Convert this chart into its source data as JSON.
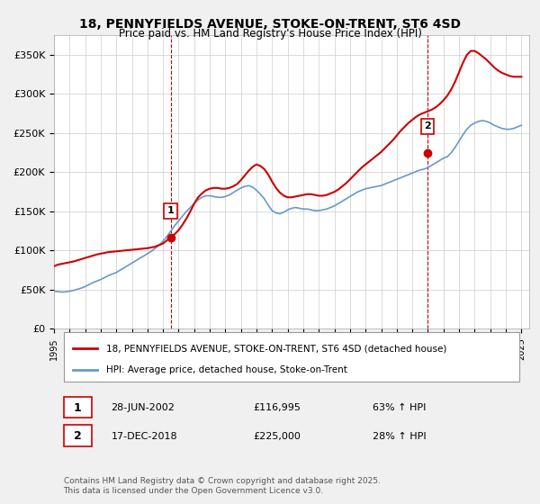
{
  "title": "18, PENNYFIELDS AVENUE, STOKE-ON-TRENT, ST6 4SD",
  "subtitle": "Price paid vs. HM Land Registry's House Price Index (HPI)",
  "legend_label1": "18, PENNYFIELDS AVENUE, STOKE-ON-TRENT, ST6 4SD (detached house)",
  "legend_label2": "HPI: Average price, detached house, Stoke-on-Trent",
  "footer": "Contains HM Land Registry data © Crown copyright and database right 2025.\nThis data is licensed under the Open Government Licence v3.0.",
  "sale1_label": "1",
  "sale1_date": "28-JUN-2002",
  "sale1_price": "£116,995",
  "sale1_hpi": "63% ↑ HPI",
  "sale2_label": "2",
  "sale2_date": "17-DEC-2018",
  "sale2_price": "£225,000",
  "sale2_hpi": "28% ↑ HPI",
  "ylim": [
    0,
    375000
  ],
  "yticks": [
    0,
    50000,
    100000,
    150000,
    200000,
    250000,
    300000,
    350000
  ],
  "xlim_start": 1995.0,
  "xlim_end": 2025.5,
  "vline1_x": 2002.49,
  "vline2_x": 2018.96,
  "marker1_x": 2002.49,
  "marker1_y": 116995,
  "marker2_x": 2018.96,
  "marker2_y": 225000,
  "color_red": "#cc0000",
  "color_blue": "#6699cc",
  "color_vline": "#cc0000",
  "background_color": "#f0f0f0",
  "plot_bg": "#ffffff",
  "hpi_data": {
    "years": [
      1995.0,
      1995.25,
      1995.5,
      1995.75,
      1996.0,
      1996.25,
      1996.5,
      1996.75,
      1997.0,
      1997.25,
      1997.5,
      1997.75,
      1998.0,
      1998.25,
      1998.5,
      1998.75,
      1999.0,
      1999.25,
      1999.5,
      1999.75,
      2000.0,
      2000.25,
      2000.5,
      2000.75,
      2001.0,
      2001.25,
      2001.5,
      2001.75,
      2002.0,
      2002.25,
      2002.5,
      2002.75,
      2003.0,
      2003.25,
      2003.5,
      2003.75,
      2004.0,
      2004.25,
      2004.5,
      2004.75,
      2005.0,
      2005.25,
      2005.5,
      2005.75,
      2006.0,
      2006.25,
      2006.5,
      2006.75,
      2007.0,
      2007.25,
      2007.5,
      2007.75,
      2008.0,
      2008.25,
      2008.5,
      2008.75,
      2009.0,
      2009.25,
      2009.5,
      2009.75,
      2010.0,
      2010.25,
      2010.5,
      2010.75,
      2011.0,
      2011.25,
      2011.5,
      2011.75,
      2012.0,
      2012.25,
      2012.5,
      2012.75,
      2013.0,
      2013.25,
      2013.5,
      2013.75,
      2014.0,
      2014.25,
      2014.5,
      2014.75,
      2015.0,
      2015.25,
      2015.5,
      2015.75,
      2016.0,
      2016.25,
      2016.5,
      2016.75,
      2017.0,
      2017.25,
      2017.5,
      2017.75,
      2018.0,
      2018.25,
      2018.5,
      2018.75,
      2019.0,
      2019.25,
      2019.5,
      2019.75,
      2020.0,
      2020.25,
      2020.5,
      2020.75,
      2021.0,
      2021.25,
      2021.5,
      2021.75,
      2022.0,
      2022.25,
      2022.5,
      2022.75,
      2023.0,
      2023.25,
      2023.5,
      2023.75,
      2024.0,
      2024.25,
      2024.5,
      2024.75,
      2025.0
    ],
    "values": [
      48000,
      47500,
      47000,
      47200,
      48000,
      49000,
      50500,
      52000,
      54000,
      56500,
      59000,
      61000,
      63000,
      65500,
      68000,
      70000,
      72000,
      75000,
      78000,
      81000,
      84000,
      87000,
      90000,
      93000,
      96000,
      99000,
      103000,
      107000,
      112000,
      118000,
      125000,
      132000,
      138000,
      144000,
      150000,
      155000,
      160000,
      165000,
      168000,
      170000,
      170000,
      169000,
      168000,
      168000,
      169000,
      171000,
      174000,
      177000,
      180000,
      182000,
      183000,
      181000,
      177000,
      172000,
      166000,
      158000,
      151000,
      148000,
      147000,
      149000,
      152000,
      154000,
      155000,
      154000,
      153000,
      153000,
      152000,
      151000,
      151000,
      152000,
      153000,
      155000,
      157000,
      160000,
      163000,
      166000,
      169000,
      172000,
      175000,
      177000,
      179000,
      180000,
      181000,
      182000,
      183000,
      185000,
      187000,
      189000,
      191000,
      193000,
      195000,
      197000,
      199000,
      201000,
      203000,
      204000,
      206000,
      209000,
      212000,
      215000,
      218000,
      220000,
      225000,
      232000,
      240000,
      248000,
      255000,
      260000,
      263000,
      265000,
      266000,
      265000,
      263000,
      260000,
      258000,
      256000,
      255000,
      255000,
      256000,
      258000,
      260000
    ]
  },
  "property_data": {
    "years": [
      1995.0,
      1995.25,
      1995.5,
      1995.75,
      1996.0,
      1996.25,
      1996.5,
      1996.75,
      1997.0,
      1997.25,
      1997.5,
      1997.75,
      1998.0,
      1998.25,
      1998.5,
      1998.75,
      1999.0,
      1999.25,
      1999.5,
      1999.75,
      2000.0,
      2000.25,
      2000.5,
      2000.75,
      2001.0,
      2001.25,
      2001.5,
      2001.75,
      2002.0,
      2002.25,
      2002.5,
      2002.75,
      2003.0,
      2003.25,
      2003.5,
      2003.75,
      2004.0,
      2004.25,
      2004.5,
      2004.75,
      2005.0,
      2005.25,
      2005.5,
      2005.75,
      2006.0,
      2006.25,
      2006.5,
      2006.75,
      2007.0,
      2007.25,
      2007.5,
      2007.75,
      2008.0,
      2008.25,
      2008.5,
      2008.75,
      2009.0,
      2009.25,
      2009.5,
      2009.75,
      2010.0,
      2010.25,
      2010.5,
      2010.75,
      2011.0,
      2011.25,
      2011.5,
      2011.75,
      2012.0,
      2012.25,
      2012.5,
      2012.75,
      2013.0,
      2013.25,
      2013.5,
      2013.75,
      2014.0,
      2014.25,
      2014.5,
      2014.75,
      2015.0,
      2015.25,
      2015.5,
      2015.75,
      2016.0,
      2016.25,
      2016.5,
      2016.75,
      2017.0,
      2017.25,
      2017.5,
      2017.75,
      2018.0,
      2018.25,
      2018.5,
      2018.75,
      2019.0,
      2019.25,
      2019.5,
      2019.75,
      2020.0,
      2020.25,
      2020.5,
      2020.75,
      2021.0,
      2021.25,
      2021.5,
      2021.75,
      2022.0,
      2022.25,
      2022.5,
      2022.75,
      2023.0,
      2023.25,
      2023.5,
      2023.75,
      2024.0,
      2024.25,
      2024.5,
      2024.75,
      2025.0
    ],
    "values": [
      80000,
      82000,
      83000,
      84000,
      85000,
      86000,
      87500,
      89000,
      90500,
      92000,
      93500,
      95000,
      96000,
      97000,
      98000,
      98500,
      99000,
      99500,
      100000,
      100500,
      101000,
      101500,
      102000,
      102500,
      103000,
      104000,
      105000,
      107000,
      109000,
      113000,
      117000,
      121000,
      126000,
      133000,
      141000,
      150000,
      160000,
      168000,
      173000,
      177000,
      179000,
      180000,
      180000,
      179000,
      179000,
      180000,
      182000,
      185000,
      190000,
      196000,
      202000,
      207000,
      210000,
      208000,
      204000,
      197000,
      188000,
      180000,
      174000,
      170000,
      168000,
      168000,
      169000,
      170000,
      171000,
      172000,
      172000,
      171000,
      170000,
      170000,
      171000,
      173000,
      175000,
      178000,
      182000,
      186000,
      191000,
      196000,
      201000,
      206000,
      210000,
      214000,
      218000,
      222000,
      226000,
      231000,
      236000,
      241000,
      247000,
      253000,
      258000,
      263000,
      267000,
      271000,
      274000,
      276000,
      278000,
      280000,
      283000,
      287000,
      292000,
      298000,
      306000,
      316000,
      328000,
      340000,
      350000,
      355000,
      355000,
      352000,
      348000,
      344000,
      339000,
      334000,
      330000,
      327000,
      325000,
      323000,
      322000,
      322000,
      322000
    ]
  }
}
